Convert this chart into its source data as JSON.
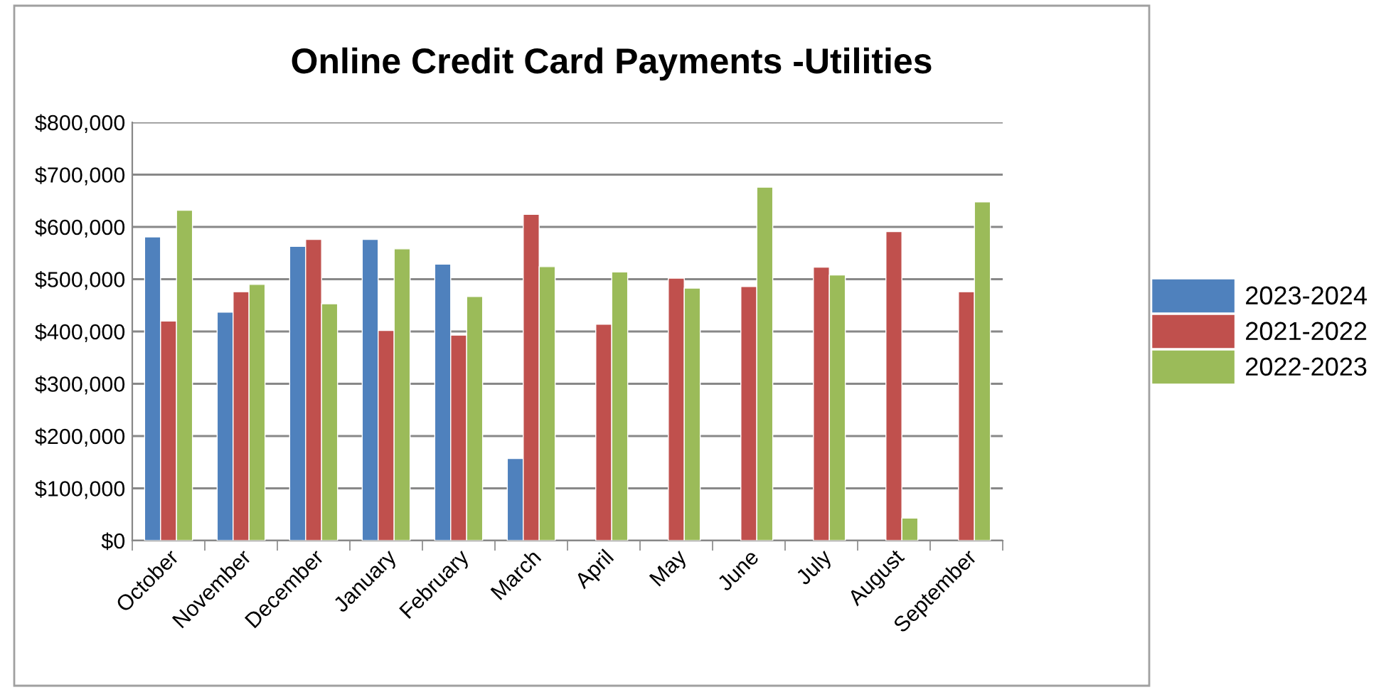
{
  "chart_data": {
    "type": "bar",
    "title": "Online Credit Card Payments -Utilities",
    "categories": [
      "October",
      "November",
      "December",
      "January",
      "February",
      "March",
      "April",
      "May",
      "June",
      "July",
      "August",
      "September"
    ],
    "series": [
      {
        "name": "2023-2024",
        "color": "#4f81bd",
        "values": [
          581000,
          437000,
          563000,
          576000,
          529000,
          157000,
          null,
          null,
          null,
          null,
          null,
          null
        ]
      },
      {
        "name": "2021-2022",
        "color": "#c0504d",
        "values": [
          420000,
          476000,
          576000,
          402000,
          393000,
          624000,
          414000,
          502000,
          486000,
          523000,
          591000,
          476000
        ]
      },
      {
        "name": "2022-2023",
        "color": "#9bbb59",
        "values": [
          632000,
          490000,
          453000,
          558000,
          467000,
          524000,
          514000,
          483000,
          676000,
          508000,
          43000,
          648000
        ]
      }
    ],
    "ylim": [
      0,
      800000
    ],
    "yticks": [
      {
        "value": 0,
        "label": "$0"
      },
      {
        "value": 100000,
        "label": "$100,000"
      },
      {
        "value": 200000,
        "label": "$200,000"
      },
      {
        "value": 300000,
        "label": "$300,000"
      },
      {
        "value": 400000,
        "label": "$400,000"
      },
      {
        "value": 500000,
        "label": "$500,000"
      },
      {
        "value": 600000,
        "label": "$600,000"
      },
      {
        "value": 700000,
        "label": "$700,000"
      },
      {
        "value": 800000,
        "label": "$800,000"
      }
    ],
    "grid": "y",
    "legend": "right"
  }
}
